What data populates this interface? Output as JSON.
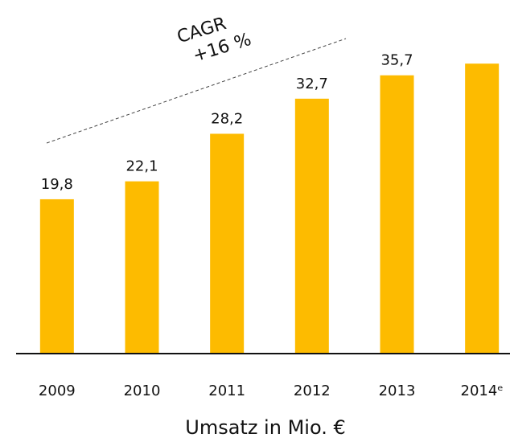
{
  "chart_data": {
    "type": "bar",
    "x_label": "Umsatz in Mio. €",
    "annotations": [
      "CAGR",
      "+16 %"
    ],
    "categories": [
      "2009",
      "2010",
      "2011",
      "2012",
      "2013",
      "2014ᵉ"
    ],
    "values": [
      19.8,
      22.1,
      28.2,
      32.7,
      35.7,
      37.2
    ],
    "value_labels": [
      "19,8",
      "22,1",
      "28,2",
      "32,7",
      "35,7",
      null
    ],
    "color": "#fdbb00",
    "ylim": [
      0,
      45
    ]
  }
}
